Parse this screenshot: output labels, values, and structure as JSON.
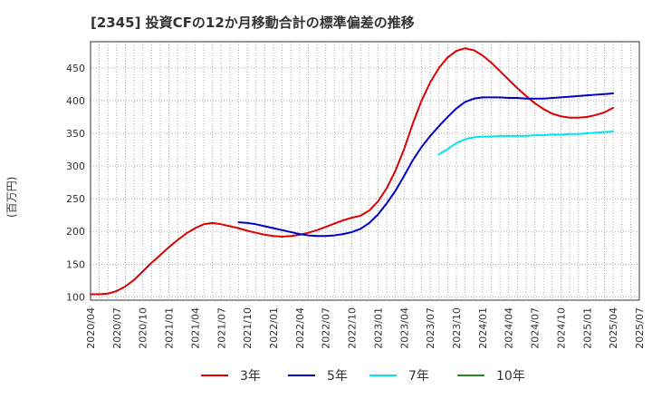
{
  "chart_data": {
    "type": "line",
    "title": "[2345]  投資CFの12か月移動合計の標準偏差の推移",
    "ylabel": "(百万円)",
    "xlabel": "",
    "ylim": [
      95,
      490
    ],
    "yticks": [
      100,
      150,
      200,
      250,
      300,
      350,
      400,
      450
    ],
    "xlim": [
      "2020-04",
      "2025-07"
    ],
    "xticks": [
      "2020/04",
      "2020/07",
      "2020/10",
      "2021/01",
      "2021/04",
      "2021/07",
      "2021/10",
      "2022/01",
      "2022/04",
      "2022/07",
      "2022/10",
      "2023/01",
      "2023/04",
      "2023/07",
      "2023/10",
      "2024/01",
      "2024/04",
      "2024/07",
      "2024/10",
      "2025/01",
      "2025/04",
      "2025/07"
    ],
    "grid": true,
    "legend_position": "bottom",
    "series": [
      {
        "name": "3年",
        "color": "#dd0000",
        "points": [
          [
            "2020-04",
            104
          ],
          [
            "2020-05",
            104
          ],
          [
            "2020-06",
            105
          ],
          [
            "2020-07",
            109
          ],
          [
            "2020-08",
            116
          ],
          [
            "2020-09",
            126
          ],
          [
            "2020-10",
            139
          ],
          [
            "2020-11",
            152
          ],
          [
            "2020-12",
            164
          ],
          [
            "2021-01",
            176
          ],
          [
            "2021-02",
            187
          ],
          [
            "2021-03",
            197
          ],
          [
            "2021-04",
            205
          ],
          [
            "2021-05",
            211
          ],
          [
            "2021-06",
            213
          ],
          [
            "2021-07",
            211
          ],
          [
            "2021-08",
            208
          ],
          [
            "2021-09",
            205
          ],
          [
            "2021-10",
            201
          ],
          [
            "2021-11",
            198
          ],
          [
            "2021-12",
            195
          ],
          [
            "2022-01",
            193
          ],
          [
            "2022-02",
            192
          ],
          [
            "2022-03",
            193
          ],
          [
            "2022-04",
            195
          ],
          [
            "2022-05",
            198
          ],
          [
            "2022-06",
            202
          ],
          [
            "2022-07",
            207
          ],
          [
            "2022-08",
            212
          ],
          [
            "2022-09",
            217
          ],
          [
            "2022-10",
            221
          ],
          [
            "2022-11",
            224
          ],
          [
            "2022-12",
            232
          ],
          [
            "2023-01",
            246
          ],
          [
            "2023-02",
            266
          ],
          [
            "2023-03",
            293
          ],
          [
            "2023-04",
            326
          ],
          [
            "2023-05",
            365
          ],
          [
            "2023-06",
            400
          ],
          [
            "2023-07",
            428
          ],
          [
            "2023-08",
            450
          ],
          [
            "2023-09",
            466
          ],
          [
            "2023-10",
            476
          ],
          [
            "2023-11",
            480
          ],
          [
            "2023-12",
            477
          ],
          [
            "2024-01",
            469
          ],
          [
            "2024-02",
            458
          ],
          [
            "2024-03",
            445
          ],
          [
            "2024-04",
            432
          ],
          [
            "2024-05",
            419
          ],
          [
            "2024-06",
            407
          ],
          [
            "2024-07",
            396
          ],
          [
            "2024-08",
            387
          ],
          [
            "2024-09",
            380
          ],
          [
            "2024-10",
            376
          ],
          [
            "2024-11",
            374
          ],
          [
            "2024-12",
            374
          ],
          [
            "2025-01",
            375
          ],
          [
            "2025-02",
            378
          ],
          [
            "2025-03",
            382
          ],
          [
            "2025-04",
            389
          ]
        ]
      },
      {
        "name": "5年",
        "color": "#0000cc",
        "points": [
          [
            "2021-09",
            214
          ],
          [
            "2021-10",
            213
          ],
          [
            "2021-11",
            211
          ],
          [
            "2021-12",
            208
          ],
          [
            "2022-01",
            205
          ],
          [
            "2022-02",
            202
          ],
          [
            "2022-03",
            199
          ],
          [
            "2022-04",
            196
          ],
          [
            "2022-05",
            194
          ],
          [
            "2022-06",
            193
          ],
          [
            "2022-07",
            193
          ],
          [
            "2022-08",
            194
          ],
          [
            "2022-09",
            196
          ],
          [
            "2022-10",
            199
          ],
          [
            "2022-11",
            204
          ],
          [
            "2022-12",
            213
          ],
          [
            "2023-01",
            226
          ],
          [
            "2023-02",
            243
          ],
          [
            "2023-03",
            262
          ],
          [
            "2023-04",
            285
          ],
          [
            "2023-05",
            309
          ],
          [
            "2023-06",
            329
          ],
          [
            "2023-07",
            346
          ],
          [
            "2023-08",
            361
          ],
          [
            "2023-09",
            375
          ],
          [
            "2023-10",
            388
          ],
          [
            "2023-11",
            398
          ],
          [
            "2023-12",
            403
          ],
          [
            "2024-01",
            405
          ],
          [
            "2024-02",
            405
          ],
          [
            "2024-03",
            405
          ],
          [
            "2024-04",
            404
          ],
          [
            "2024-05",
            404
          ],
          [
            "2024-06",
            403
          ],
          [
            "2024-07",
            403
          ],
          [
            "2024-08",
            403
          ],
          [
            "2024-09",
            404
          ],
          [
            "2024-10",
            405
          ],
          [
            "2024-11",
            406
          ],
          [
            "2024-12",
            407
          ],
          [
            "2025-01",
            408
          ],
          [
            "2025-02",
            409
          ],
          [
            "2025-03",
            410
          ],
          [
            "2025-04",
            411
          ]
        ]
      },
      {
        "name": "7年",
        "color": "#00e5ee",
        "points": [
          [
            "2023-08",
            318
          ],
          [
            "2023-09",
            326
          ],
          [
            "2023-10",
            335
          ],
          [
            "2023-11",
            341
          ],
          [
            "2023-12",
            344
          ],
          [
            "2024-01",
            345
          ],
          [
            "2024-02",
            345
          ],
          [
            "2024-03",
            346
          ],
          [
            "2024-04",
            346
          ],
          [
            "2024-05",
            346
          ],
          [
            "2024-06",
            346
          ],
          [
            "2024-07",
            347
          ],
          [
            "2024-08",
            347
          ],
          [
            "2024-09",
            348
          ],
          [
            "2024-10",
            348
          ],
          [
            "2024-11",
            349
          ],
          [
            "2024-12",
            349
          ],
          [
            "2025-01",
            350
          ],
          [
            "2025-02",
            351
          ],
          [
            "2025-03",
            352
          ],
          [
            "2025-04",
            353
          ]
        ]
      },
      {
        "name": "10年",
        "color": "#228b22",
        "points": []
      }
    ]
  }
}
